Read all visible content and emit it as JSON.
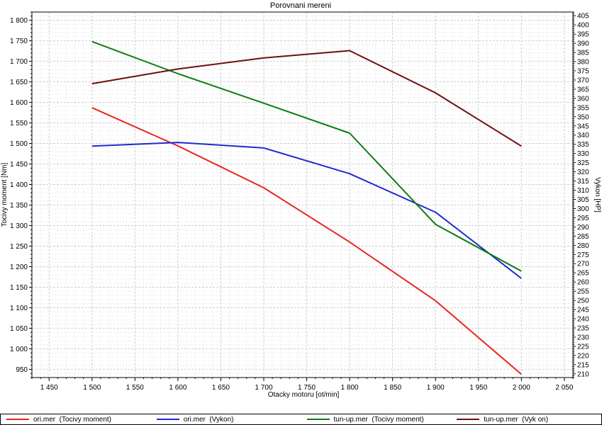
{
  "chart_data": {
    "type": "line",
    "title": "Porovnani mereni",
    "xlabel": "Otacky motoru [ot/min]",
    "ylabel": "Tocivy moment [Nm]",
    "y2label": "Vykon [HP]",
    "xlim": [
      1430,
      2060
    ],
    "ylim": [
      930,
      1820
    ],
    "y2lim": [
      208,
      407
    ],
    "xticks": [
      1450,
      1500,
      1550,
      1600,
      1650,
      1700,
      1750,
      1800,
      1850,
      1900,
      1950,
      2000,
      2050
    ],
    "xtick_labels": [
      "1 450",
      "1 500",
      "1 550",
      "1 600",
      "1 650",
      "1 700",
      "1 750",
      "1 800",
      "1 850",
      "1 900",
      "1 950",
      "2 000",
      "2 050"
    ],
    "yticks": [
      950,
      1000,
      1050,
      1100,
      1150,
      1200,
      1250,
      1300,
      1350,
      1400,
      1450,
      1500,
      1550,
      1600,
      1650,
      1700,
      1750,
      1800
    ],
    "ytick_labels": [
      "950",
      "1 000",
      "1 050",
      "1 100",
      "1 150",
      "1 200",
      "1 250",
      "1 300",
      "1 350",
      "1 400",
      "1 450",
      "1 500",
      "1 550",
      "1 600",
      "1 650",
      "1 700",
      "1 750",
      "1 800"
    ],
    "y2ticks": [
      210,
      215,
      220,
      225,
      230,
      235,
      240,
      245,
      250,
      255,
      260,
      265,
      270,
      275,
      280,
      285,
      290,
      295,
      300,
      305,
      310,
      315,
      320,
      325,
      330,
      335,
      340,
      345,
      350,
      355,
      360,
      365,
      370,
      375,
      380,
      385,
      390,
      395,
      400,
      405
    ],
    "y2tick_labels": [
      "210",
      "215",
      "220",
      "225",
      "230",
      "235",
      "240",
      "245",
      "250",
      "255",
      "260",
      "265",
      "270",
      "275",
      "280",
      "285",
      "290",
      "295",
      "300",
      "305",
      "310",
      "315",
      "320",
      "325",
      "330",
      "335",
      "340",
      "345",
      "350",
      "355",
      "360",
      "365",
      "370",
      "375",
      "380",
      "385",
      "390",
      "395",
      "400",
      "405"
    ],
    "grid": true,
    "legend_position": "bottom",
    "x": [
      1500,
      1600,
      1700,
      1800,
      1900,
      2000
    ],
    "series": [
      {
        "name": "ori.mer  (Tocivy moment)",
        "axis": "left",
        "color": "#e8261c",
        "values": [
          1587,
          1494,
          1392,
          1260,
          1117,
          938
        ]
      },
      {
        "name": "ori.mer  (Vykon)",
        "axis": "right",
        "color": "#1f2bd1",
        "values": [
          334,
          336,
          333,
          319,
          298,
          262
        ]
      },
      {
        "name": "tun-up.mer  (Tocivy moment)",
        "axis": "left",
        "color": "#0e7c14",
        "values": [
          1748,
          1670,
          1598,
          1525,
          1303,
          1189
        ]
      },
      {
        "name": "tun-up.mer  (Vyk on)",
        "axis": "right",
        "color": "#6e1010",
        "values": [
          368,
          376,
          382,
          386,
          363,
          334
        ]
      }
    ]
  }
}
